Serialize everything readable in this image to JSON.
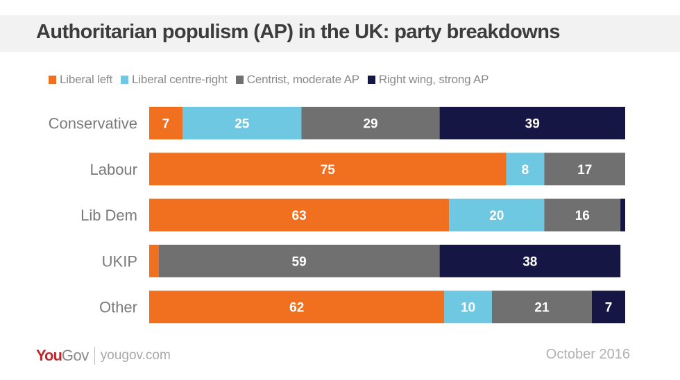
{
  "chart_data": {
    "type": "bar",
    "orientation": "horizontal",
    "stacked": true,
    "title": "Authoritarian populism (AP) in the UK: party breakdowns",
    "xlabel": "",
    "ylabel": "",
    "xlim": [
      0,
      100
    ],
    "grid": false,
    "legend_position": "top",
    "categories": [
      "Conservative",
      "Labour",
      "Lib Dem",
      "UKIP",
      "Other"
    ],
    "series": [
      {
        "name": "Liberal left",
        "color": "#f07020",
        "values": [
          7,
          75,
          63,
          2,
          62
        ],
        "labels": [
          "7",
          "75",
          "63",
          "",
          "62"
        ]
      },
      {
        "name": "Liberal centre-right",
        "color": "#6ec8e1",
        "values": [
          25,
          8,
          20,
          0,
          10
        ],
        "labels": [
          "25",
          "8",
          "20",
          "",
          "10"
        ]
      },
      {
        "name": "Centrist, moderate AP",
        "color": "#707070",
        "values": [
          29,
          17,
          16,
          59,
          21
        ],
        "labels": [
          "29",
          "17",
          "16",
          "59",
          "21"
        ]
      },
      {
        "name": "Right wing, strong AP",
        "color": "#161645",
        "values": [
          39,
          0,
          1,
          38,
          7
        ],
        "labels": [
          "39",
          "",
          "",
          "38",
          "7"
        ]
      }
    ]
  },
  "header": {
    "title": "Authoritarian populism (AP) in the UK: party breakdowns"
  },
  "legend": [
    {
      "label": "Liberal left",
      "color": "#f07020"
    },
    {
      "label": "Liberal centre-right",
      "color": "#6ec8e1"
    },
    {
      "label": "Centrist, moderate AP",
      "color": "#707070"
    },
    {
      "label": "Right wing, strong AP",
      "color": "#161645"
    }
  ],
  "footer": {
    "logo_you": "You",
    "logo_gov": "Gov",
    "url": "yougov.com",
    "date": "October 2016"
  }
}
